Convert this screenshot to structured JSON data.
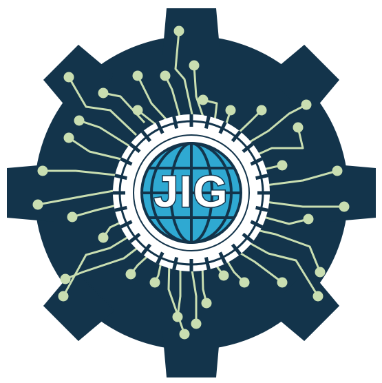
{
  "logo": {
    "text": "JIG",
    "colors": {
      "gear": "#13344b",
      "circuit": "#c9deb1",
      "ring": "#ffffff",
      "globe": "#2fa9d2",
      "globe_lines": "#13344b",
      "text_fill": "#ffffff",
      "text_stroke": "#13344b",
      "background": "#ffffff"
    }
  }
}
